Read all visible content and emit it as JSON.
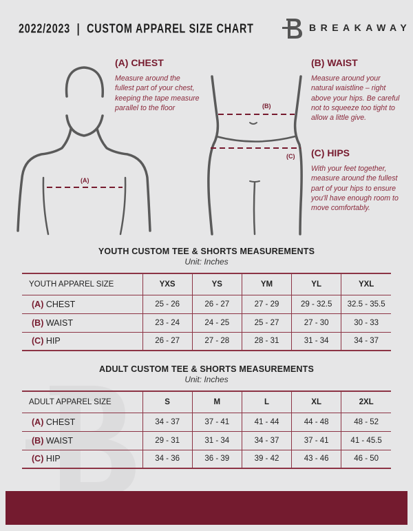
{
  "header": {
    "title": "2022/2023  |  CUSTOM APPAREL SIZE CHART",
    "brand": "BREAKAWAY"
  },
  "colors": {
    "accent": "#761a2e",
    "background": "#e6e6e7",
    "figure": "#5a5a5a"
  },
  "guide": {
    "chest": {
      "heading": "(A) CHEST",
      "text": "Measure around the fullest part of your chest, keeping the tape measure parallel to the floor",
      "tag": "(A)"
    },
    "waist": {
      "heading": "(B) WAIST",
      "text": "Measure around your natural waistline – right above your hips. Be careful not to squeeze too tight to allow a little give.",
      "tag": "(B)"
    },
    "hips": {
      "heading": "(C) HIPS",
      "text": "With your feet together, measure around the fullest part of your hips to ensure you'll have enough room to move comfortably.",
      "tag": "(C)"
    }
  },
  "youth": {
    "title": "YOUTH CUSTOM TEE & SHORTS MEASUREMENTS",
    "unit": "Unit: Inches",
    "header": "YOUTH APPAREL SIZE",
    "sizes": [
      "YXS",
      "YS",
      "YM",
      "YL",
      "YXL"
    ],
    "rows": [
      {
        "letter": "(A)",
        "label": "CHEST",
        "values": [
          "25 - 26",
          "26 - 27",
          "27 - 29",
          "29 - 32.5",
          "32.5 - 35.5"
        ]
      },
      {
        "letter": "(B)",
        "label": "WAIST",
        "values": [
          "23 - 24",
          "24 - 25",
          "25 - 27",
          "27 - 30",
          "30 - 33"
        ]
      },
      {
        "letter": "(C)",
        "label": "HIP",
        "values": [
          "26 - 27",
          "27 - 28",
          "28 - 31",
          "31 - 34",
          "34 - 37"
        ]
      }
    ]
  },
  "adult": {
    "title": "ADULT CUSTOM TEE & SHORTS MEASUREMENTS",
    "unit": "Unit: Inches",
    "header": "ADULT APPAREL SIZE",
    "sizes": [
      "S",
      "M",
      "L",
      "XL",
      "2XL"
    ],
    "rows": [
      {
        "letter": "(A)",
        "label": "CHEST",
        "values": [
          "34 - 37",
          "37 - 41",
          "41 - 44",
          "44 - 48",
          "48 - 52"
        ]
      },
      {
        "letter": "(B)",
        "label": "WAIST",
        "values": [
          "29 - 31",
          "31 - 34",
          "34 - 37",
          "37 - 41",
          "41 - 45.5"
        ]
      },
      {
        "letter": "(C)",
        "label": "HIP",
        "values": [
          "34 - 36",
          "36 - 39",
          "39 - 42",
          "43 - 46",
          "46 - 50"
        ]
      }
    ]
  }
}
